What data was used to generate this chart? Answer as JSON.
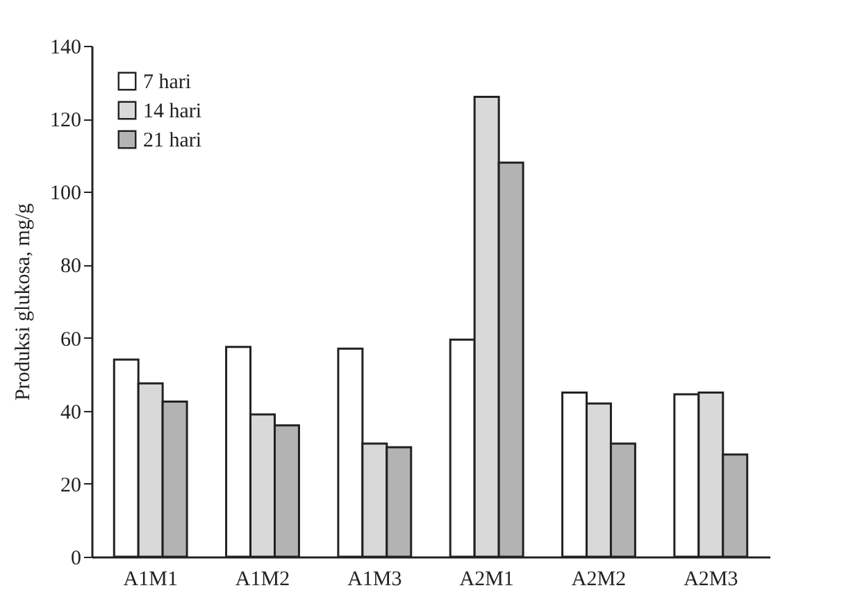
{
  "chart_data": {
    "type": "bar",
    "ylabel": "Produksi glukosa, mg/g",
    "categories": [
      "A1M1",
      "A1M2",
      "A1M3",
      "A2M1",
      "A2M2",
      "A2M3"
    ],
    "series": [
      {
        "name": "7 hari",
        "color": "#ffffff",
        "values": [
          54,
          57.5,
          57,
          59.5,
          45,
          44.5
        ]
      },
      {
        "name": "14 hari",
        "color": "#d9d9d9",
        "values": [
          47.5,
          39,
          31,
          126,
          42,
          45
        ]
      },
      {
        "name": "21 hari",
        "color": "#b3b3b3",
        "values": [
          42.5,
          36,
          30,
          108,
          31,
          28
        ]
      }
    ],
    "ylim": [
      0,
      140
    ],
    "yticks": [
      0,
      20,
      40,
      60,
      80,
      100,
      120,
      140
    ],
    "grid": false,
    "legend": "top left"
  }
}
